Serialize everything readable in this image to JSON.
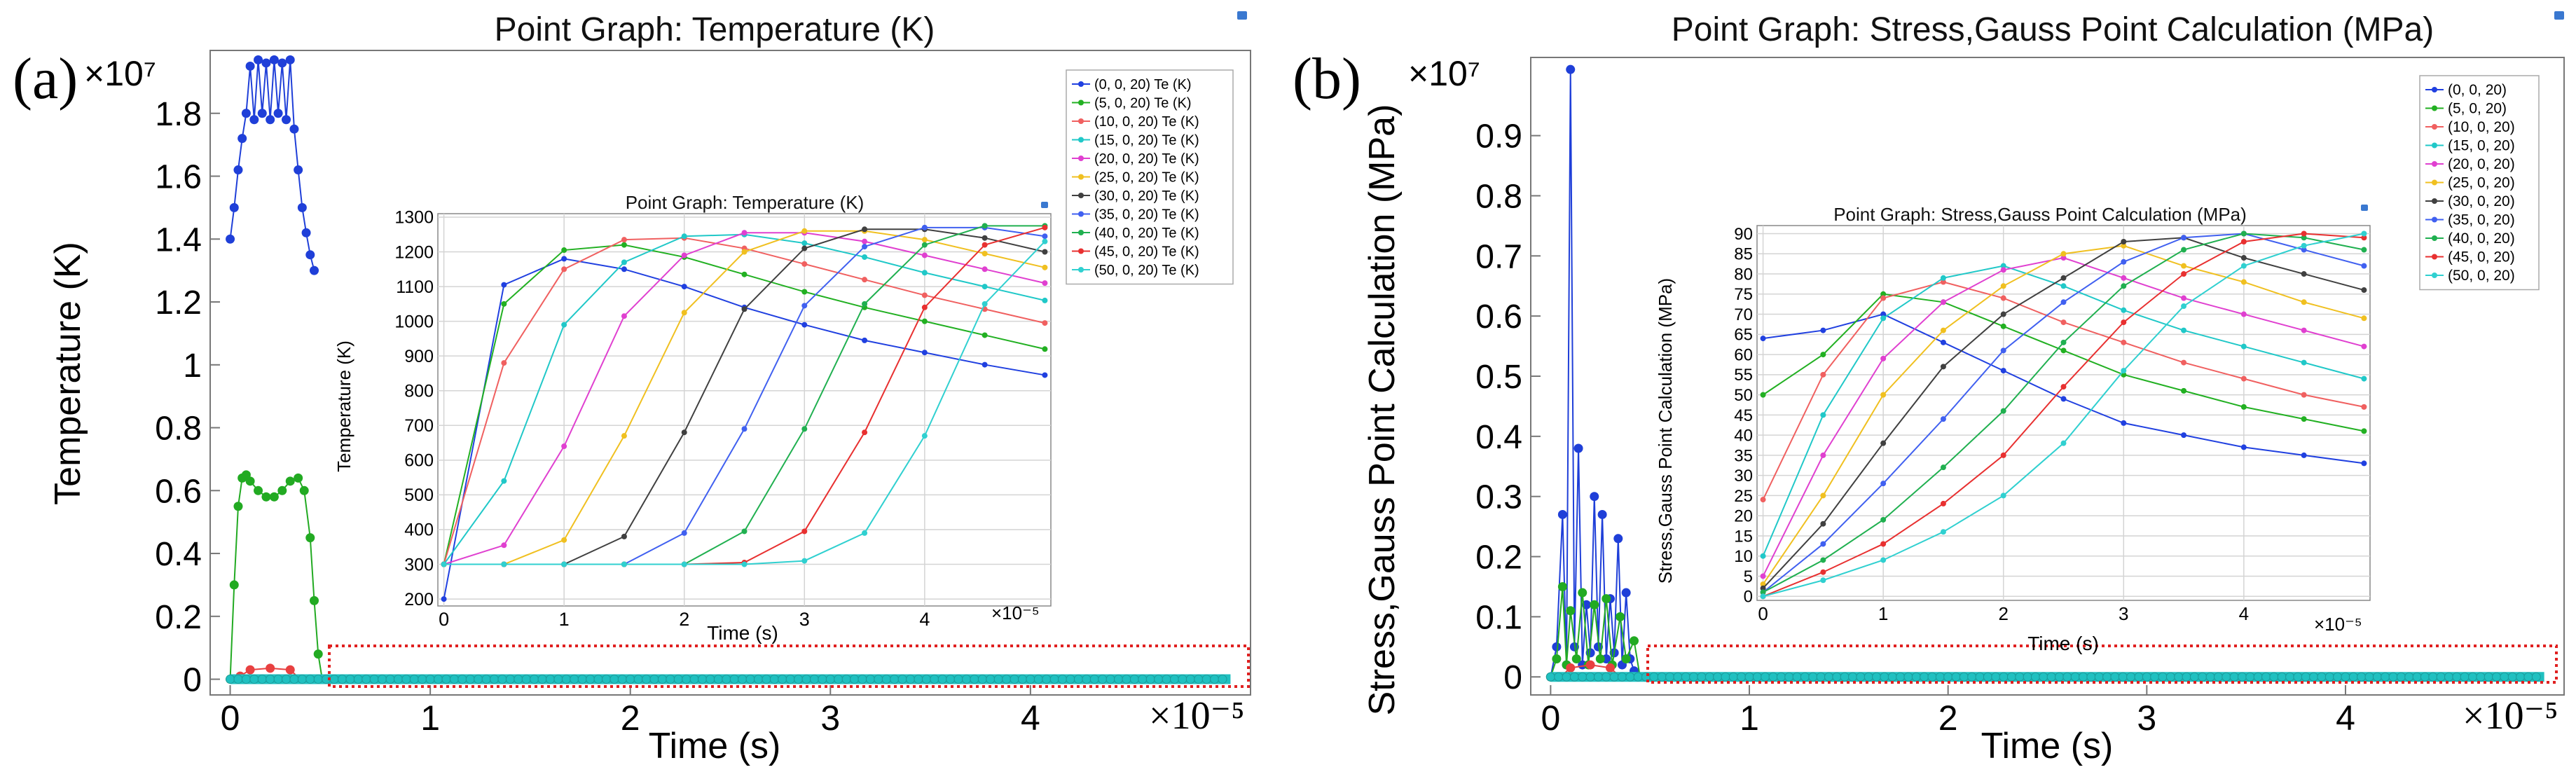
{
  "chart_data": [
    {
      "type": "line",
      "panel": "(a)",
      "title": "Point Graph: Temperature (K)",
      "xlabel": "Time (s)",
      "ylabel": "Temperature (K)",
      "x_multiplier": "×10⁻⁵",
      "y_multiplier": "×10⁷",
      "xlim": [
        -0.1,
        5.1
      ],
      "ylim": [
        -0.05,
        2.0
      ],
      "x_ticks": [
        "0",
        "1",
        "2",
        "3",
        "4"
      ],
      "y_ticks": [
        "0",
        "0.2",
        "0.4",
        "0.6",
        "0.8",
        "1",
        "1.2",
        "1.4",
        "1.6",
        "1.8"
      ],
      "grid": false,
      "annotation": "dotted red box marks the near-zero region enlarged in the inset",
      "series": [
        {
          "name": "(0, 0, 20) Te (K)",
          "color": "#1f3fd8",
          "x": [
            0.0,
            0.02,
            0.04,
            0.06,
            0.08,
            0.1,
            0.12,
            0.14,
            0.16,
            0.18,
            0.2,
            0.22,
            0.24,
            0.26,
            0.28,
            0.3,
            0.32,
            0.34,
            0.36,
            0.38,
            0.4,
            0.42
          ],
          "values": [
            1.4,
            1.5,
            1.62,
            1.72,
            1.8,
            1.95,
            1.78,
            1.97,
            1.8,
            1.96,
            1.78,
            1.97,
            1.8,
            1.96,
            1.78,
            1.97,
            1.75,
            1.62,
            1.5,
            1.42,
            1.35,
            1.3
          ]
        },
        {
          "name": "(5, 0, 20) Te (K)",
          "color": "#22aa22",
          "x": [
            0.0,
            0.02,
            0.04,
            0.06,
            0.08,
            0.1,
            0.14,
            0.18,
            0.22,
            0.26,
            0.3,
            0.34,
            0.37,
            0.4,
            0.42,
            0.44,
            0.46
          ],
          "values": [
            0.0,
            0.3,
            0.55,
            0.64,
            0.65,
            0.63,
            0.6,
            0.58,
            0.58,
            0.6,
            0.63,
            0.64,
            0.6,
            0.45,
            0.25,
            0.08,
            0.0
          ]
        },
        {
          "name": "(10, 0, 20) Te (K)",
          "color": "#e84040",
          "x": [
            0.05,
            0.1,
            0.2,
            0.3,
            0.35
          ],
          "values": [
            0.01,
            0.03,
            0.035,
            0.03,
            0.0
          ]
        },
        {
          "name": "(50, 0, 20) Te (K)",
          "color": "#20c0c0",
          "x": [
            0.0,
            5.0
          ],
          "values": [
            0.0,
            0.0
          ]
        }
      ],
      "inset": {
        "title": "Point Graph: Temperature (K)",
        "xlabel": "Time (s)",
        "ylabel": "Temperature (K)",
        "x_multiplier": "×10⁻⁵",
        "xlim": [
          -0.05,
          5.05
        ],
        "ylim": [
          180,
          1310
        ],
        "x_ticks": [
          "0",
          "1",
          "2",
          "3",
          "4"
        ],
        "y_ticks": [
          "200",
          "300",
          "400",
          "500",
          "600",
          "700",
          "800",
          "900",
          "1000",
          "1100",
          "1200",
          "1300"
        ],
        "x": [
          0,
          0.5,
          1,
          1.5,
          2,
          2.5,
          3,
          3.5,
          4,
          4.5,
          5
        ],
        "legend": [
          "(0, 0, 20) Te (K)",
          "(5, 0, 20) Te (K)",
          "(10, 0, 20) Te (K)",
          "(15, 0, 20) Te (K)",
          "(20, 0, 20) Te (K)",
          "(25, 0, 20) Te (K)",
          "(30, 0, 20) Te (K)",
          "(35, 0, 20) Te (K)",
          "(40, 0, 20) Te (K)",
          "(45, 0, 20) Te (K)",
          "(50, 0, 20) Te (K)"
        ],
        "series": [
          {
            "name": "(0, 0, 20) Te (K)",
            "color": "#2040e0",
            "values": [
              200,
              1105,
              1180,
              1150,
              1100,
              1040,
              990,
              945,
              910,
              875,
              845
            ]
          },
          {
            "name": "(5, 0, 20) Te (K)",
            "color": "#22b022",
            "values": [
              300,
              1050,
              1205,
              1220,
              1185,
              1135,
              1085,
              1040,
              1000,
              960,
              920
            ]
          },
          {
            "name": "(10, 0, 20) Te (K)",
            "color": "#f06060",
            "values": [
              300,
              880,
              1150,
              1235,
              1240,
              1210,
              1165,
              1120,
              1075,
              1035,
              995
            ]
          },
          {
            "name": "(15, 0, 20) Te (K)",
            "color": "#20c8c8",
            "values": [
              300,
              540,
              990,
              1170,
              1245,
              1250,
              1225,
              1185,
              1140,
              1100,
              1060
            ]
          },
          {
            "name": "(20, 0, 20) Te (K)",
            "color": "#e040d0",
            "values": [
              300,
              355,
              640,
              1015,
              1190,
              1255,
              1255,
              1230,
              1190,
              1150,
              1110
            ]
          },
          {
            "name": "(25, 0, 20) Te (K)",
            "color": "#f0c020",
            "values": [
              300,
              300,
              370,
              670,
              1025,
              1200,
              1260,
              1260,
              1235,
              1195,
              1155
            ]
          },
          {
            "name": "(30, 0, 20) Te (K)",
            "color": "#404040",
            "values": [
              300,
              300,
              300,
              380,
              680,
              1035,
              1210,
              1265,
              1265,
              1240,
              1200
            ]
          },
          {
            "name": "(35, 0, 20) Te (K)",
            "color": "#4060f0",
            "values": [
              300,
              300,
              300,
              300,
              390,
              690,
              1045,
              1215,
              1270,
              1270,
              1245
            ]
          },
          {
            "name": "(40, 0, 20) Te (K)",
            "color": "#20b050",
            "values": [
              300,
              300,
              300,
              300,
              300,
              395,
              690,
              1050,
              1220,
              1275,
              1275
            ]
          },
          {
            "name": "(45, 0, 20) Te (K)",
            "color": "#e83030",
            "values": [
              300,
              300,
              300,
              300,
              300,
              305,
              395,
              680,
              1040,
              1220,
              1270
            ]
          },
          {
            "name": "(50, 0, 20) Te (K)",
            "color": "#30d0d0",
            "values": [
              300,
              300,
              300,
              300,
              300,
              300,
              310,
              390,
              670,
              1050,
              1230
            ]
          }
        ]
      }
    },
    {
      "type": "line",
      "panel": "(b)",
      "title": "Point Graph: Stress,Gauss Point Calculation (MPa)",
      "xlabel": "Time (s)",
      "ylabel": "Stress,Gauss Point Calculation (MPa)",
      "x_multiplier": "×10⁻⁵",
      "y_multiplier": "×10⁷",
      "xlim": [
        -0.1,
        5.1
      ],
      "ylim": [
        -0.03,
        1.03
      ],
      "x_ticks": [
        "0",
        "1",
        "2",
        "3",
        "4"
      ],
      "y_ticks": [
        "0",
        "0.1",
        "0.2",
        "0.3",
        "0.4",
        "0.5",
        "0.6",
        "0.7",
        "0.8",
        "0.9"
      ],
      "grid": false,
      "annotation": "dotted red box marks the near-zero region enlarged in the inset",
      "series": [
        {
          "name": "(0, 0, 20)",
          "color": "#1f3fd8",
          "x": [
            0.0,
            0.03,
            0.06,
            0.08,
            0.1,
            0.12,
            0.14,
            0.16,
            0.18,
            0.2,
            0.22,
            0.24,
            0.26,
            0.28,
            0.3,
            0.32,
            0.34,
            0.36,
            0.38,
            0.4,
            0.42,
            0.45
          ],
          "values": [
            0.0,
            0.05,
            0.27,
            0.02,
            1.01,
            0.05,
            0.38,
            0.02,
            0.12,
            0.04,
            0.3,
            0.05,
            0.27,
            0.03,
            0.13,
            0.04,
            0.23,
            0.02,
            0.14,
            0.03,
            0.01,
            0.0
          ]
        },
        {
          "name": "(5, 0, 20)",
          "color": "#22aa22",
          "x": [
            0.0,
            0.03,
            0.06,
            0.08,
            0.1,
            0.13,
            0.16,
            0.19,
            0.22,
            0.25,
            0.28,
            0.31,
            0.35,
            0.38,
            0.42,
            0.45
          ],
          "values": [
            0.0,
            0.03,
            0.15,
            0.02,
            0.11,
            0.03,
            0.14,
            0.02,
            0.12,
            0.03,
            0.13,
            0.02,
            0.1,
            0.03,
            0.06,
            0.0
          ]
        },
        {
          "name": "(10, 0, 20)",
          "color": "#e84040",
          "x": [
            0.05,
            0.1,
            0.2,
            0.3,
            0.35
          ],
          "values": [
            0.0,
            0.015,
            0.02,
            0.015,
            0.0
          ]
        },
        {
          "name": "(50, 0, 20)",
          "color": "#20c0c0",
          "x": [
            0.0,
            5.0
          ],
          "values": [
            0.0,
            0.0
          ]
        }
      ],
      "inset": {
        "title": "Point Graph: Stress,Gauss Point Calculation (MPa)",
        "xlabel": "Time (s)",
        "ylabel": "Stress,Gauss Point Calculation (MPa)",
        "x_multiplier": "×10⁻⁵",
        "xlim": [
          -0.05,
          5.05
        ],
        "ylim": [
          -1,
          92
        ],
        "x_ticks": [
          "0",
          "1",
          "2",
          "3",
          "4"
        ],
        "y_ticks": [
          "0",
          "5",
          "10",
          "15",
          "20",
          "25",
          "30",
          "35",
          "40",
          "45",
          "50",
          "55",
          "60",
          "65",
          "70",
          "75",
          "80",
          "85",
          "90"
        ],
        "x": [
          0,
          0.5,
          1,
          1.5,
          2,
          2.5,
          3,
          3.5,
          4,
          4.5,
          5
        ],
        "legend": [
          "(0, 0, 20)",
          "(5, 0, 20)",
          "(10, 0, 20)",
          "(15, 0, 20)",
          "(20, 0, 20)",
          "(25, 0, 20)",
          "(30, 0, 20)",
          "(35, 0, 20)",
          "(40, 0, 20)",
          "(45, 0, 20)",
          "(50, 0, 20)"
        ],
        "series": [
          {
            "name": "(0, 0, 20)",
            "color": "#2040e0",
            "values": [
              64,
              66,
              70,
              63,
              56,
              49,
              43,
              40,
              37,
              35,
              33
            ]
          },
          {
            "name": "(5, 0, 20)",
            "color": "#22b022",
            "values": [
              50,
              60,
              75,
              73,
              67,
              61,
              55,
              51,
              47,
              44,
              41
            ]
          },
          {
            "name": "(10, 0, 20)",
            "color": "#f06060",
            "values": [
              24,
              55,
              74,
              78,
              74,
              68,
              63,
              58,
              54,
              50,
              47
            ]
          },
          {
            "name": "(15, 0, 20)",
            "color": "#20c8c8",
            "values": [
              10,
              45,
              69,
              79,
              82,
              77,
              71,
              66,
              62,
              58,
              54
            ]
          },
          {
            "name": "(20, 0, 20)",
            "color": "#e040d0",
            "values": [
              5,
              35,
              59,
              73,
              81,
              84,
              79,
              74,
              70,
              66,
              62
            ]
          },
          {
            "name": "(25, 0, 20)",
            "color": "#f0c020",
            "values": [
              3,
              25,
              50,
              66,
              77,
              85,
              87,
              82,
              78,
              73,
              69
            ]
          },
          {
            "name": "(30, 0, 20)",
            "color": "#404040",
            "values": [
              2,
              18,
              38,
              57,
              70,
              79,
              88,
              89,
              84,
              80,
              76
            ]
          },
          {
            "name": "(35, 0, 20)",
            "color": "#4060f0",
            "values": [
              1,
              13,
              28,
              44,
              61,
              73,
              83,
              89,
              90,
              86,
              82
            ]
          },
          {
            "name": "(40, 0, 20)",
            "color": "#20b050",
            "values": [
              1,
              9,
              19,
              32,
              46,
              63,
              77,
              86,
              90,
              89,
              86
            ]
          },
          {
            "name": "(45, 0, 20)",
            "color": "#e83030",
            "values": [
              0,
              6,
              13,
              23,
              35,
              52,
              68,
              80,
              88,
              90,
              89
            ]
          },
          {
            "name": "(50, 0, 20)",
            "color": "#30d0d0",
            "values": [
              0,
              4,
              9,
              16,
              25,
              38,
              56,
              72,
              82,
              87,
              90
            ]
          }
        ]
      }
    }
  ]
}
